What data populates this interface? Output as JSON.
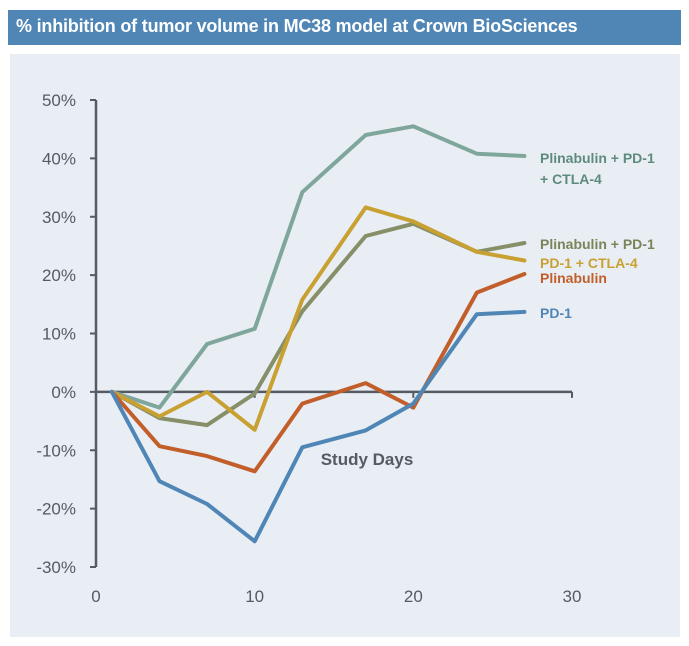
{
  "chart_data": {
    "type": "line",
    "title": "% inhibition of tumor volume in MC38 model at Crown BioSciences",
    "xlabel": "Study Days",
    "ylabel": "",
    "xlim": [
      0,
      30
    ],
    "ylim": [
      -0.3,
      0.5
    ],
    "xticks": [
      0,
      10,
      20,
      30
    ],
    "xtick_labels": [
      "0",
      "10",
      "20",
      "30"
    ],
    "yticks": [
      -0.3,
      -0.2,
      -0.1,
      0,
      0.1,
      0.2,
      0.3,
      0.4,
      0.5
    ],
    "ytick_labels": [
      "-30%",
      "-20%",
      "-10%",
      "0%",
      "10%",
      "20%",
      "30%",
      "40%",
      "50%"
    ],
    "grid": false,
    "legend": "inline-right",
    "x": [
      1,
      4,
      7,
      10,
      13,
      17,
      20,
      24,
      27
    ],
    "series": [
      {
        "name": "Plinabulin + PD-1 + CTLA-4",
        "label_lines": [
          "Plinabulin + PD-1",
          "+ CTLA-4"
        ],
        "color": "#7fa69b",
        "label_color": "#5f8a7e",
        "values": [
          0,
          -0.027,
          0.082,
          0.108,
          0.342,
          0.44,
          0.455,
          0.408,
          0.404
        ]
      },
      {
        "name": "Plinabulin + PD-1",
        "label_lines": [
          "Plinabulin + PD-1"
        ],
        "color": "#868f68",
        "label_color": "#7a8458",
        "values": [
          0,
          -0.045,
          -0.057,
          -0.003,
          0.138,
          0.267,
          0.288,
          0.24,
          0.255
        ]
      },
      {
        "name": "PD-1 + CTLA-4",
        "label_lines": [
          "PD-1 + CTLA-4"
        ],
        "color": "#c9a032",
        "label_color": "#c9a032",
        "values": [
          0,
          -0.042,
          0,
          -0.065,
          0.158,
          0.316,
          0.292,
          0.24,
          0.225
        ]
      },
      {
        "name": "Plinabulin",
        "label_lines": [
          "Plinabulin"
        ],
        "color": "#c15e29",
        "label_color": "#c15e29",
        "values": [
          0,
          -0.093,
          -0.11,
          -0.136,
          -0.02,
          0.015,
          -0.027,
          0.17,
          0.202
        ]
      },
      {
        "name": "PD-1",
        "label_lines": [
          "PD-1"
        ],
        "color": "#4f86b6",
        "label_color": "#4f86b6",
        "values": [
          0,
          -0.153,
          -0.192,
          -0.256,
          -0.095,
          -0.066,
          -0.02,
          0.133,
          0.137
        ]
      }
    ]
  }
}
